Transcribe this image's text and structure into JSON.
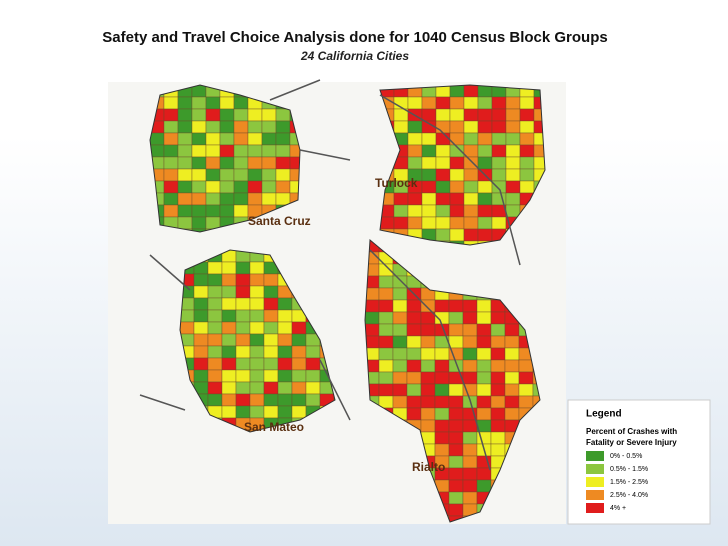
{
  "header": {
    "title": "Safety and Travel Choice Analysis done for 1040 Census Block Groups",
    "subtitle": "24 California Cities"
  },
  "cities": [
    {
      "label": "Santa Cruz"
    },
    {
      "label": "Turlock"
    },
    {
      "label": "San Mateo"
    },
    {
      "label": "Rialto"
    }
  ],
  "legend": {
    "title": "Legend",
    "heading": [
      "Percent of Crashes with",
      "Fatality or Severe Injury"
    ],
    "items": [
      {
        "label": "0% - 0.5%",
        "color": "#3d9a2b"
      },
      {
        "label": "0.5% - 1.5%",
        "color": "#8cc63f"
      },
      {
        "label": "1.5% - 2.5%",
        "color": "#eeee22"
      },
      {
        "label": "2.5% - 4.0%",
        "color": "#ee8a22"
      },
      {
        "label": "4% +",
        "color": "#e01c1c"
      }
    ]
  }
}
